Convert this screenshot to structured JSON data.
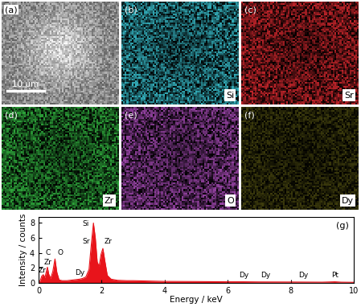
{
  "panels": [
    {
      "label": "(a)",
      "scale_bar": "10 μm"
    },
    {
      "label": "(b)",
      "element": "Si",
      "color": "#35b3c0"
    },
    {
      "label": "(c)",
      "element": "Sr",
      "color": "#c8262c"
    },
    {
      "label": "(d)",
      "element": "Zr",
      "color": "#2fa83c"
    },
    {
      "label": "(e)",
      "element": "O",
      "color": "#9a45a8"
    },
    {
      "label": "(f)",
      "element": "Dy",
      "color": "#b8b428"
    }
  ],
  "chart_data": {
    "type": "area",
    "title": "(g)",
    "xlabel": "Energy / keV",
    "ylabel": "Intensity / counts",
    "x": [
      0,
      0.05,
      0.1,
      0.15,
      0.2,
      0.25,
      0.28,
      0.32,
      0.38,
      0.45,
      0.52,
      0.58,
      0.65,
      0.75,
      0.9,
      1.0,
      1.1,
      1.2,
      1.3,
      1.4,
      1.5,
      1.6,
      1.68,
      1.74,
      1.8,
      1.86,
      1.92,
      1.98,
      2.04,
      2.1,
      2.18,
      2.3,
      2.5,
      2.8,
      3.0,
      3.5,
      4.0,
      5.0,
      6.0,
      6.5,
      7.0,
      8.0,
      9.0,
      9.4,
      9.6,
      10.0
    ],
    "values": [
      0,
      0.3,
      0.9,
      1.1,
      0.7,
      1.6,
      2.1,
      1.2,
      0.6,
      1.5,
      3.2,
      1.4,
      0.4,
      0.3,
      0.3,
      0.35,
      0.4,
      0.45,
      0.5,
      0.6,
      0.8,
      1.8,
      5.5,
      8.0,
      6.0,
      2.8,
      2.2,
      3.8,
      4.6,
      3.0,
      1.0,
      0.5,
      0.35,
      0.3,
      0.3,
      0.25,
      0.2,
      0.18,
      0.15,
      0.15,
      0.13,
      0.12,
      0.1,
      0.15,
      0.1,
      0.08
    ],
    "color": "#e8141b",
    "xlim": [
      0,
      10
    ],
    "xticks": [
      0,
      2,
      4,
      6,
      8,
      10
    ],
    "ylim": [
      0,
      8.8
    ],
    "yticks": [
      0,
      2,
      4,
      6,
      8
    ],
    "annotations": [
      {
        "text": "Zr",
        "x": 0.12,
        "y": 1.2
      },
      {
        "text": "Zr",
        "x": 0.3,
        "y": 2.3
      },
      {
        "text": "C",
        "x": 0.3,
        "y": 3.5
      },
      {
        "text": "O",
        "x": 0.68,
        "y": 3.5
      },
      {
        "text": "Dy",
        "x": 1.3,
        "y": 0.9
      },
      {
        "text": "Si",
        "x": 1.5,
        "y": 7.4
      },
      {
        "text": "Sr",
        "x": 1.5,
        "y": 5.0
      },
      {
        "text": "Zr",
        "x": 2.2,
        "y": 5.0
      },
      {
        "text": "Dy",
        "x": 6.5,
        "y": 0.5
      },
      {
        "text": "Dy",
        "x": 7.2,
        "y": 0.5
      },
      {
        "text": "Dy",
        "x": 8.4,
        "y": 0.5
      },
      {
        "text": "Pt",
        "x": 9.4,
        "y": 0.5
      }
    ]
  }
}
